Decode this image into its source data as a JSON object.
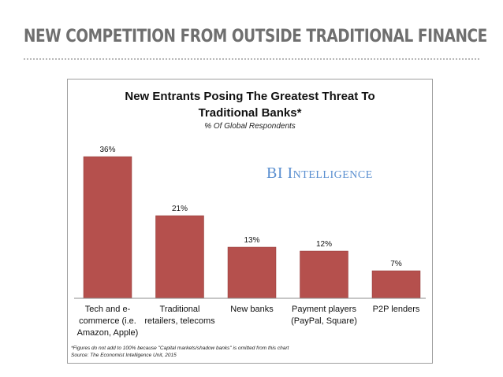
{
  "slide": {
    "title": "NEW COMPETITION FROM OUTSIDE TRADITIONAL FINANCE"
  },
  "chart_data": {
    "type": "bar",
    "title_line1": "New Entrants Posing The Greatest Threat To",
    "title_line2": "Traditional Banks*",
    "subtitle": "% Of Global Respondents",
    "categories": [
      [
        "Tech and e-",
        "commerce (i.e.",
        "Amazon, Apple)"
      ],
      [
        "Traditional",
        "retailers, telecoms"
      ],
      [
        "New banks"
      ],
      [
        "Payment players",
        "(PayPal, Square)"
      ],
      [
        "P2P lenders"
      ]
    ],
    "values": [
      36,
      21,
      13,
      12,
      7
    ],
    "value_labels": [
      "36%",
      "21%",
      "13%",
      "12%",
      "7%"
    ],
    "ylim": [
      0,
      40
    ],
    "bar_color": "#b5504d",
    "grid": false,
    "legend": "none"
  },
  "branding": {
    "prefix": "BI",
    "name": "Intelligence",
    "color": "#5a8fd0"
  },
  "footnote": {
    "line1": "*Figures do not add to 100% because \"Capital markets/shadow banks\" is omitted from this chart",
    "line2": "Source: The Economist Intelligence Unit, 2015"
  }
}
